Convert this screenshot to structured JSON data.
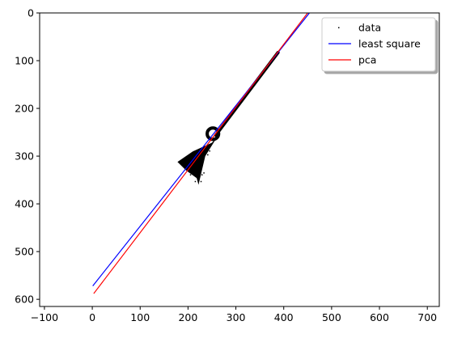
{
  "chart_data": {
    "type": "scatter",
    "title": "",
    "xlabel": "",
    "ylabel": "",
    "xlim": [
      -110,
      725
    ],
    "ylim": [
      615,
      0
    ],
    "y_inverted": true,
    "grid": false,
    "legend_placement": "upper right",
    "xticks": [
      -100,
      0,
      100,
      200,
      300,
      400,
      500,
      600,
      700
    ],
    "yticks": [
      0,
      100,
      200,
      300,
      400,
      500,
      600
    ],
    "series": [
      {
        "name": "data",
        "kind": "points",
        "color": "#000000",
        "marker": ",",
        "needle": {
          "from": [
            388,
            83
          ],
          "to": [
            258,
            256
          ]
        },
        "ring": {
          "center": [
            252,
            253
          ],
          "radius": 12
        },
        "blob": [
          [
            250,
            272
          ],
          [
            210,
            290
          ],
          [
            178,
            312
          ],
          [
            196,
            330
          ],
          [
            218,
            346
          ],
          [
            222,
            360
          ],
          [
            236,
            300
          ],
          [
            262,
            258
          ]
        ]
      },
      {
        "name": "least square",
        "kind": "line",
        "color": "#0000ff",
        "x": [
          1,
          460
        ],
        "y": [
          572,
          -8
        ]
      },
      {
        "name": "pca",
        "kind": "line",
        "color": "#ff0000",
        "x": [
          3,
          453
        ],
        "y": [
          588,
          -4
        ]
      }
    ]
  }
}
